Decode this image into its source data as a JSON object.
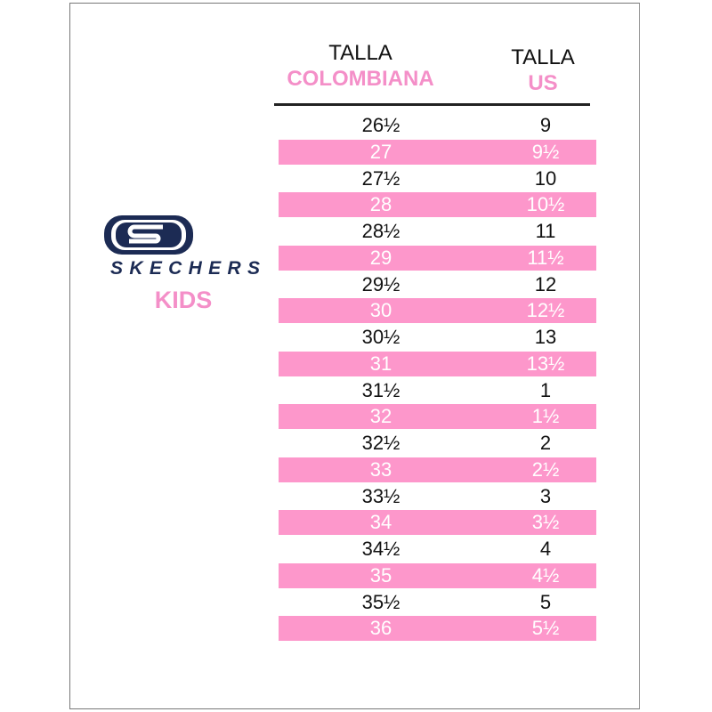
{
  "header": {
    "col1_line1": "TALLA",
    "col1_line2": "COLOMBIANA",
    "col2_line1": "TALLA",
    "col2_line2": "US"
  },
  "brand": {
    "logo_text": "SKECHERS",
    "subtitle": "KIDS"
  },
  "colors": {
    "pink": "#fd97cb",
    "accent_text": "#f48fc8",
    "navy": "#1c2b54"
  },
  "rows": [
    {
      "col": "26½",
      "us": "9"
    },
    {
      "col": "27",
      "us": "9½"
    },
    {
      "col": "27½",
      "us": "10"
    },
    {
      "col": "28",
      "us": "10½"
    },
    {
      "col": "28½",
      "us": "11"
    },
    {
      "col": "29",
      "us": "11½"
    },
    {
      "col": "29½",
      "us": "12"
    },
    {
      "col": "30",
      "us": "12½"
    },
    {
      "col": "30½",
      "us": "13"
    },
    {
      "col": "31",
      "us": "13½"
    },
    {
      "col": "31½",
      "us": "1"
    },
    {
      "col": "32",
      "us": "1½"
    },
    {
      "col": "32½",
      "us": "2"
    },
    {
      "col": "33",
      "us": "2½"
    },
    {
      "col": "33½",
      "us": "3"
    },
    {
      "col": "34",
      "us": "3½"
    },
    {
      "col": "34½",
      "us": "4"
    },
    {
      "col": "35",
      "us": "4½"
    },
    {
      "col": "35½",
      "us": "5"
    },
    {
      "col": "36",
      "us": "5½"
    }
  ]
}
